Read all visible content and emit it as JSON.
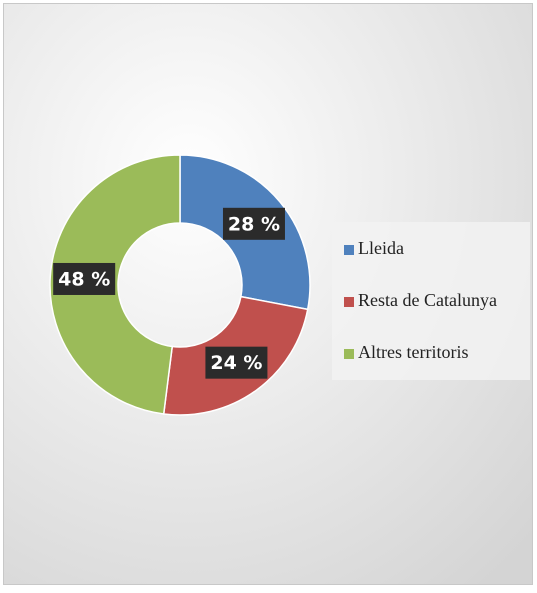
{
  "chart_data": {
    "type": "donut",
    "categories": [
      "Lleida",
      "Resta de Catalunya",
      "Altres territoris"
    ],
    "values": [
      28,
      24,
      48
    ],
    "value_labels": [
      "28 %",
      "24 %",
      "48 %"
    ],
    "colors": [
      "#4f81bd",
      "#c0504d",
      "#9bbb59"
    ],
    "legend": "right"
  }
}
